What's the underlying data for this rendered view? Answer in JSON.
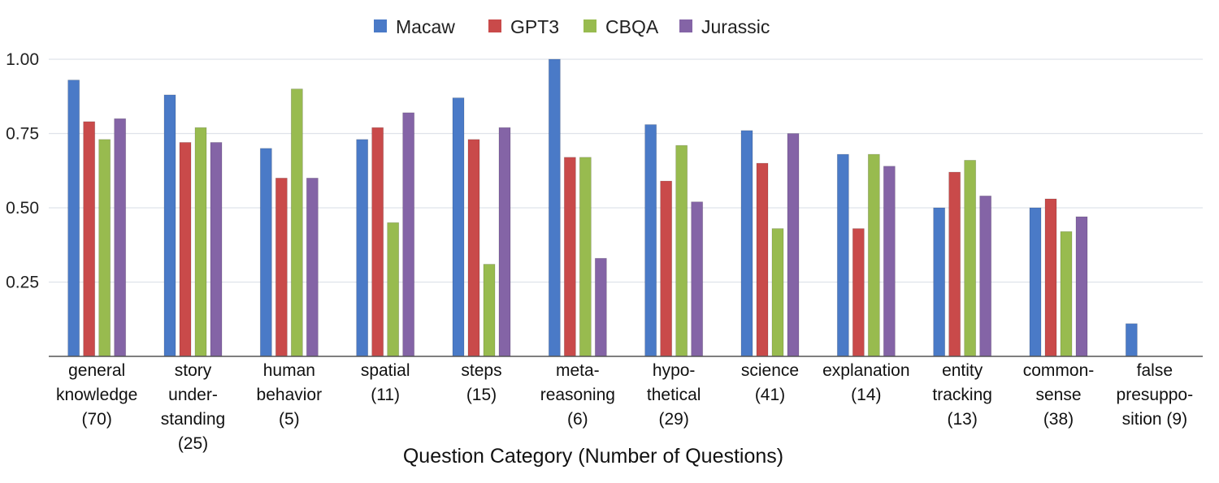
{
  "chart_data": {
    "type": "bar",
    "title": "",
    "xlabel": "Question Category (Number of Questions)",
    "ylabel": "",
    "ylim": [
      0,
      1.0
    ],
    "yticks": [
      "0.25",
      "0.50",
      "0.75",
      "1.00"
    ],
    "ytick_values": [
      0.25,
      0.5,
      0.75,
      1.0
    ],
    "grid": true,
    "legend_position": "top-center",
    "categories": [
      [
        "general",
        "knowledge",
        "(70)"
      ],
      [
        "story",
        "under-",
        "standing",
        "(25)"
      ],
      [
        "human",
        "behavior",
        "(5)"
      ],
      [
        "spatial",
        "(11)"
      ],
      [
        "steps",
        "(15)"
      ],
      [
        "meta-",
        "reasoning",
        "(6)"
      ],
      [
        "hypo-",
        "thetical",
        "(29)"
      ],
      [
        "science",
        "(41)"
      ],
      [
        "explanation",
        "(14)"
      ],
      [
        "entity",
        "tracking",
        "(13)"
      ],
      [
        "common-",
        "sense",
        "(38)"
      ],
      [
        "false",
        "presuppo-",
        "sition (9)"
      ]
    ],
    "series": [
      {
        "name": "Macaw",
        "color": "#4a7ac7",
        "values": [
          0.93,
          0.88,
          0.7,
          0.73,
          0.87,
          1.0,
          0.78,
          0.76,
          0.68,
          0.5,
          0.5,
          0.11
        ]
      },
      {
        "name": "GPT3",
        "color": "#c94a4a",
        "values": [
          0.79,
          0.72,
          0.6,
          0.77,
          0.73,
          0.67,
          0.59,
          0.65,
          0.43,
          0.62,
          0.53,
          0
        ]
      },
      {
        "name": "CBQA",
        "color": "#98bb4f",
        "values": [
          0.73,
          0.77,
          0.9,
          0.45,
          0.31,
          0.67,
          0.71,
          0.43,
          0.68,
          0.66,
          0.42,
          0
        ]
      },
      {
        "name": "Jurassic",
        "color": "#8464a6",
        "values": [
          0.8,
          0.72,
          0.6,
          0.82,
          0.77,
          0.33,
          0.52,
          0.75,
          0.64,
          0.54,
          0.47,
          0
        ]
      }
    ]
  }
}
